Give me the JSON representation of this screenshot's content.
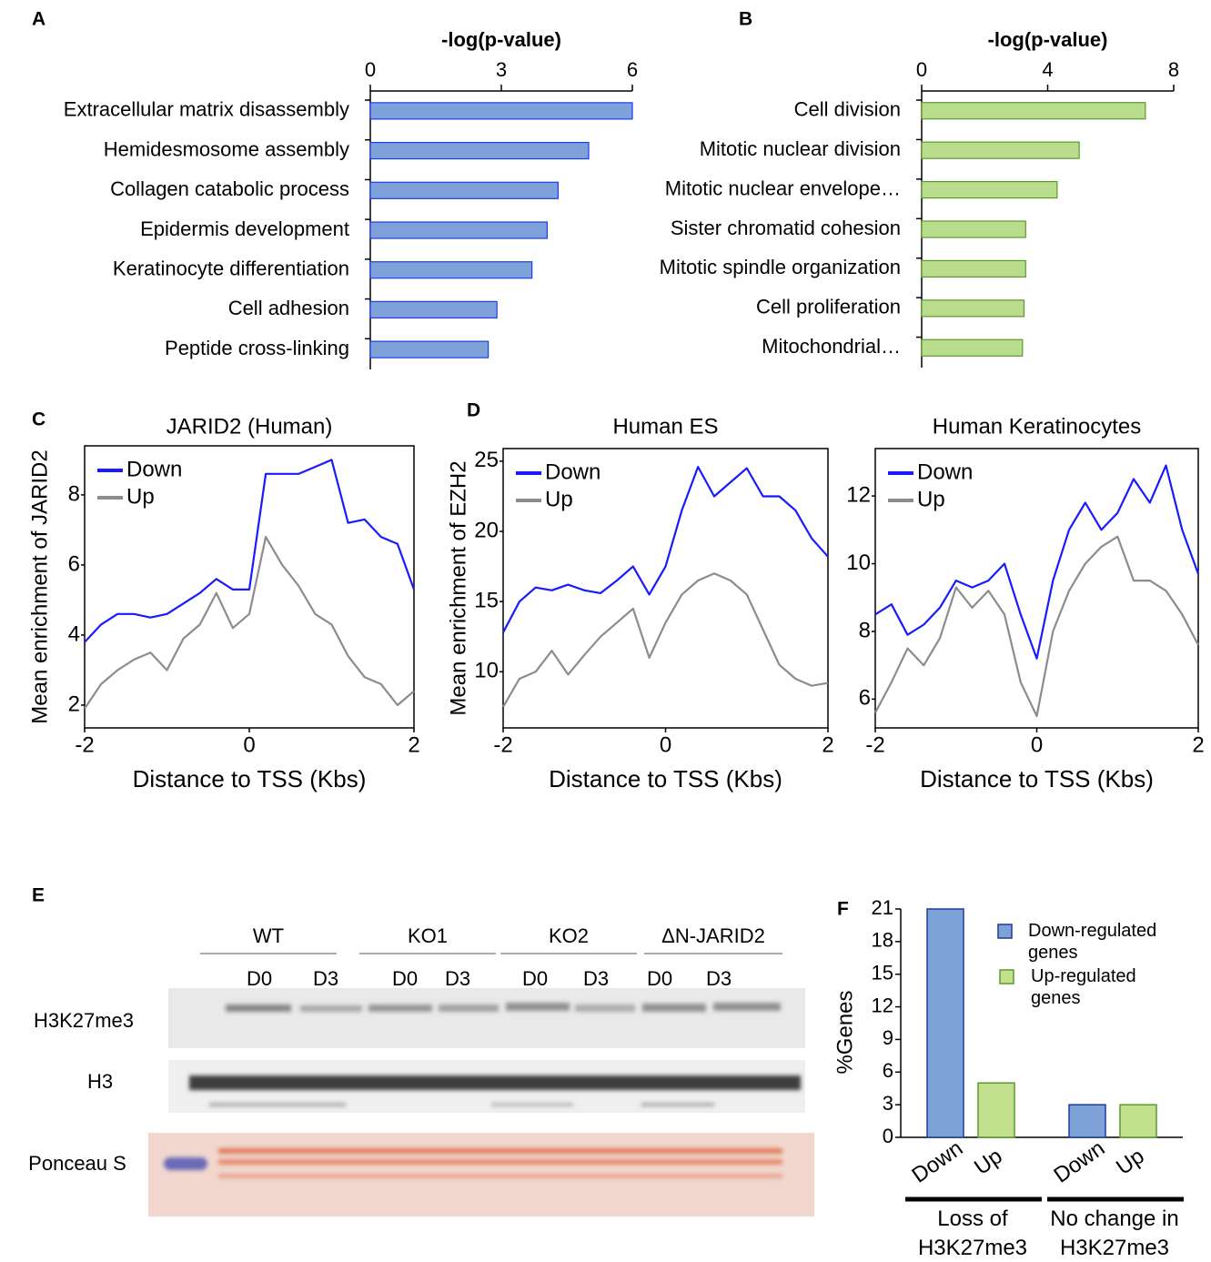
{
  "chart_data": [
    {
      "type": "hbar",
      "panel": "A",
      "xlabel": "-log(p-value)",
      "categories": [
        "Extracellular matrix disassembly",
        "Hemidesmosome assembly",
        "Collagen catabolic process",
        "Epidermis development",
        "Keratinocyte differentiation",
        "Cell adhesion",
        "Peptide cross-linking"
      ],
      "values": [
        6.0,
        5.0,
        4.3,
        4.05,
        3.7,
        2.9,
        2.7
      ],
      "color": "#7ea1da",
      "edgecolor": "#1a3cf0",
      "xlim": [
        0,
        6
      ],
      "xticks": [
        0,
        3,
        6
      ]
    },
    {
      "type": "hbar",
      "panel": "B",
      "xlabel": "-log(p-value)",
      "categories": [
        "Cell division",
        "Mitotic nuclear division",
        "Mitotic nuclear envelope…",
        "Sister chromatid cohesion",
        "Mitotic spindle organization",
        "Cell proliferation",
        "Mitochondrial…"
      ],
      "values": [
        7.1,
        5.0,
        4.3,
        3.3,
        3.3,
        3.25,
        3.2
      ],
      "color": "#b9dd8c",
      "edgecolor": "#5a9b2e",
      "xlim": [
        0,
        8
      ],
      "xticks": [
        0,
        4,
        8
      ]
    },
    {
      "type": "line",
      "panel": "C",
      "title": "JARID2 (Human)",
      "xlabel": "Distance to TSS (Kbs)",
      "ylabel": "Mean enrichment of JARID2",
      "x": [
        -2,
        -1.8,
        -1.6,
        -1.4,
        -1.2,
        -1,
        -0.8,
        -0.6,
        -0.4,
        -0.2,
        0,
        0.2,
        0.4,
        0.6,
        0.8,
        1,
        1.2,
        1.4,
        1.6,
        1.8,
        2
      ],
      "series": [
        {
          "name": "Down",
          "color": "#1a1aff",
          "values": [
            3.8,
            4.3,
            4.6,
            4.6,
            4.5,
            4.6,
            4.9,
            5.2,
            5.6,
            5.3,
            5.3,
            8.6,
            8.6,
            8.6,
            8.8,
            9.0,
            7.2,
            7.3,
            6.8,
            6.6,
            5.3
          ]
        },
        {
          "name": "Up",
          "color": "#8c8c8c",
          "values": [
            1.9,
            2.6,
            3.0,
            3.3,
            3.5,
            3.0,
            3.9,
            4.3,
            5.2,
            4.2,
            4.6,
            6.8,
            6.0,
            5.4,
            4.6,
            4.3,
            3.4,
            2.8,
            2.6,
            2.0,
            2.4
          ]
        }
      ],
      "xlim": [
        -2,
        2
      ],
      "xticks": [
        -2,
        0,
        2
      ],
      "ylim": [
        1.35,
        9.4
      ],
      "yticks": [
        2,
        4,
        6,
        8
      ]
    },
    {
      "type": "line",
      "panel": "D",
      "title": "Human ES",
      "xlabel": "Distance to TSS (Kbs)",
      "ylabel": "Mean enrichment of EZH2",
      "x": [
        -2,
        -1.8,
        -1.6,
        -1.4,
        -1.2,
        -1,
        -0.8,
        -0.6,
        -0.4,
        -0.2,
        0,
        0.2,
        0.4,
        0.6,
        0.8,
        1,
        1.2,
        1.4,
        1.6,
        1.8,
        2
      ],
      "series": [
        {
          "name": "Down",
          "color": "#1a1aff",
          "values": [
            12.8,
            15.0,
            16.0,
            15.8,
            16.2,
            15.8,
            15.6,
            16.5,
            17.5,
            15.5,
            17.5,
            21.5,
            24.6,
            22.5,
            23.5,
            24.5,
            22.5,
            22.5,
            21.5,
            19.5,
            18.2
          ]
        },
        {
          "name": "Up",
          "color": "#8c8c8c",
          "values": [
            7.5,
            9.5,
            10.0,
            11.5,
            9.8,
            11.2,
            12.5,
            13.5,
            14.5,
            11.0,
            13.5,
            15.5,
            16.5,
            17.0,
            16.5,
            15.5,
            13.0,
            10.5,
            9.5,
            9.0,
            9.2
          ]
        }
      ],
      "xlim": [
        -2,
        2
      ],
      "xticks": [
        -2,
        0,
        2
      ],
      "ylim": [
        6,
        25.9
      ],
      "yticks": [
        10,
        15,
        20,
        25
      ]
    },
    {
      "type": "line",
      "title": "Human Keratinocytes",
      "xlabel": "Distance to TSS (Kbs)",
      "x": [
        -2,
        -1.8,
        -1.6,
        -1.4,
        -1.2,
        -1,
        -0.8,
        -0.6,
        -0.4,
        -0.2,
        0,
        0.2,
        0.4,
        0.6,
        0.8,
        1,
        1.2,
        1.4,
        1.6,
        1.8,
        2
      ],
      "series": [
        {
          "name": "Down",
          "color": "#1a1aff",
          "values": [
            8.5,
            8.8,
            7.9,
            8.2,
            8.7,
            9.5,
            9.3,
            9.5,
            10.0,
            8.5,
            7.2,
            9.5,
            11.0,
            11.8,
            11.0,
            11.5,
            12.5,
            11.8,
            12.9,
            11.0,
            9.7
          ]
        },
        {
          "name": "Up",
          "color": "#8c8c8c",
          "values": [
            5.6,
            6.5,
            7.5,
            7.0,
            7.8,
            9.3,
            8.7,
            9.2,
            8.5,
            6.5,
            5.5,
            8.0,
            9.2,
            10.0,
            10.5,
            10.8,
            9.5,
            9.5,
            9.2,
            8.5,
            7.6
          ]
        }
      ],
      "xlim": [
        -2,
        2
      ],
      "xticks": [
        -2,
        0,
        2
      ],
      "ylim": [
        5.15,
        13.4
      ],
      "yticks": [
        6,
        8,
        10,
        12
      ]
    },
    {
      "type": "groupbar",
      "panel": "F",
      "ylabel": "%Genes",
      "categories": [
        "Loss of H3K27me3",
        "No change in H3K27me3"
      ],
      "bar_labels": [
        "Down",
        "Up",
        "Down",
        "Up"
      ],
      "series": [
        {
          "name": "Down-regulated genes",
          "color": "#7ea1da",
          "edgecolor": "#1f3a9a",
          "values": [
            21,
            3
          ]
        },
        {
          "name": "Up-regulated genes",
          "color": "#c2e08e",
          "edgecolor": "#5a9b2e",
          "values": [
            5,
            3
          ]
        }
      ],
      "ylim": [
        0,
        21
      ],
      "yticks": [
        0,
        3,
        6,
        9,
        12,
        15,
        18,
        21
      ]
    }
  ],
  "blot": {
    "panel": "E",
    "groups": [
      "WT",
      "KO1",
      "KO2",
      "ΔN-JARID2"
    ],
    "lanes": [
      "D0",
      "D3",
      "D0",
      "D3",
      "D0",
      "D3",
      "D0",
      "D3"
    ],
    "rows": [
      "H3K27me3",
      "H3",
      "Ponceau S"
    ]
  }
}
